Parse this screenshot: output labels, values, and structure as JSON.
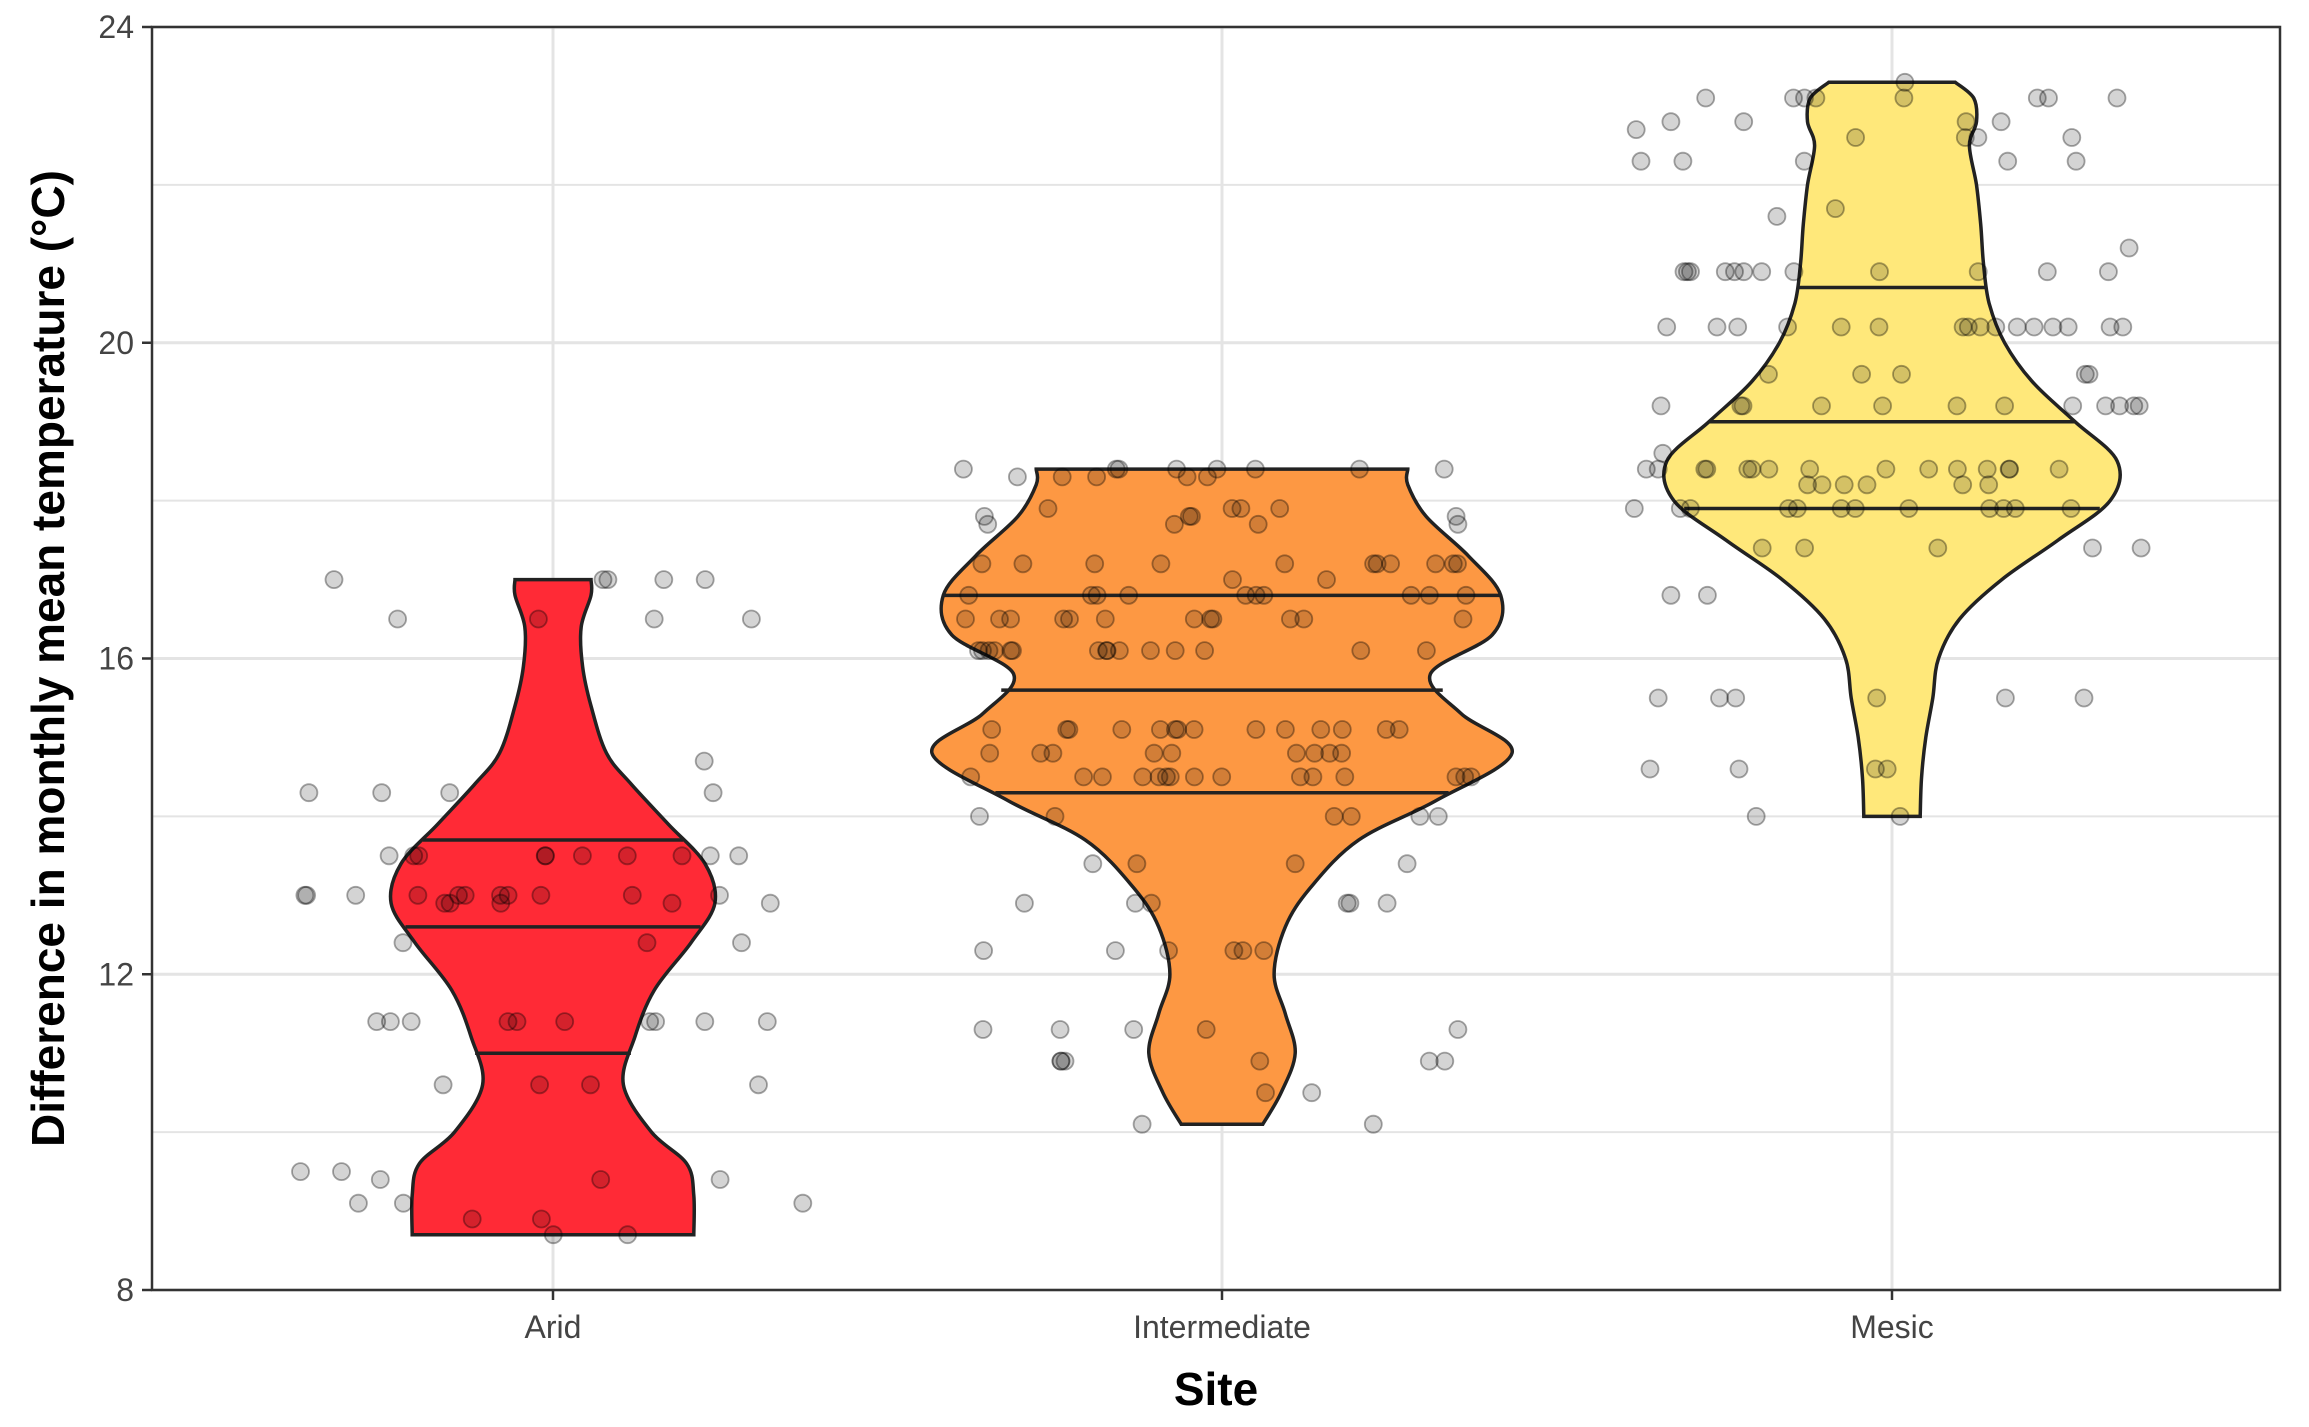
{
  "chart_data": {
    "type": "violin",
    "title": "",
    "xlabel": "Site",
    "ylabel": "Difference in monthly mean temperature (°C)",
    "ylim": [
      8,
      24
    ],
    "yticks": [
      8,
      12,
      16,
      20,
      24
    ],
    "grid": true,
    "legend": "none",
    "categories": [
      "Arid",
      "Intermediate",
      "Mesic"
    ],
    "colors": {
      "Arid": "#ff2a36",
      "Intermediate": "#fd9843",
      "Mesic": "#ffe87a",
      "outline": "#222222",
      "points": "#000000"
    },
    "series": [
      {
        "category": "Arid",
        "min": 8.7,
        "max": 17.0,
        "quartiles": [
          11.0,
          12.6,
          13.7
        ],
        "density": [
          [
            8.7,
            1.0
          ],
          [
            9.2,
            1.0
          ],
          [
            9.6,
            0.95
          ],
          [
            10.0,
            0.7
          ],
          [
            10.6,
            0.5
          ],
          [
            11.2,
            0.58
          ],
          [
            11.8,
            0.72
          ],
          [
            12.4,
            0.98
          ],
          [
            12.9,
            1.15
          ],
          [
            13.4,
            1.08
          ],
          [
            13.9,
            0.82
          ],
          [
            14.4,
            0.56
          ],
          [
            14.8,
            0.38
          ],
          [
            15.4,
            0.27
          ],
          [
            15.9,
            0.21
          ],
          [
            16.4,
            0.2
          ],
          [
            16.8,
            0.27
          ],
          [
            17.0,
            0.27
          ]
        ],
        "points": [
          17.0,
          17.0,
          17.0,
          17.0,
          17.0,
          16.5,
          16.5,
          16.5,
          16.5,
          14.7,
          14.3,
          14.3,
          14.3,
          14.3,
          13.5,
          13.5,
          13.5,
          13.5,
          13.5,
          13.5,
          13.5,
          13.5,
          13.5,
          13.5,
          13.0,
          13.0,
          13.0,
          13.0,
          13.0,
          13.0,
          13.0,
          13.0,
          13.0,
          13.0,
          13.0,
          12.9,
          12.9,
          12.9,
          12.9,
          12.9,
          12.4,
          12.4,
          12.4,
          11.4,
          11.4,
          11.4,
          11.4,
          11.4,
          11.4,
          11.4,
          11.4,
          11.4,
          11.4,
          10.6,
          10.6,
          10.6,
          10.6,
          9.5,
          9.5,
          9.4,
          9.4,
          9.4,
          9.1,
          9.1,
          9.1,
          8.9,
          8.9,
          8.7,
          8.7
        ]
      },
      {
        "category": "Intermediate",
        "min": 10.1,
        "max": 18.4,
        "quartiles": [
          14.3,
          15.6,
          16.8
        ],
        "density": [
          [
            10.1,
            0.29
          ],
          [
            10.5,
            0.42
          ],
          [
            11.0,
            0.52
          ],
          [
            11.5,
            0.45
          ],
          [
            12.0,
            0.37
          ],
          [
            12.6,
            0.45
          ],
          [
            13.1,
            0.63
          ],
          [
            13.7,
            0.97
          ],
          [
            14.2,
            1.52
          ],
          [
            14.8,
            2.06
          ],
          [
            15.3,
            1.7
          ],
          [
            15.8,
            1.48
          ],
          [
            16.3,
            1.92
          ],
          [
            16.8,
            1.98
          ],
          [
            17.3,
            1.75
          ],
          [
            17.8,
            1.45
          ],
          [
            18.2,
            1.32
          ],
          [
            18.4,
            1.32
          ]
        ],
        "points": [
          18.4,
          18.4,
          18.4,
          18.4,
          18.4,
          18.4,
          18.4,
          18.4,
          18.3,
          18.3,
          18.3,
          18.3,
          18.3,
          17.9,
          17.9,
          17.9,
          17.9,
          17.8,
          17.8,
          17.8,
          17.8,
          17.7,
          17.7,
          17.7,
          17.7,
          17.2,
          17.2,
          17.2,
          17.2,
          17.2,
          17.2,
          17.2,
          17.2,
          17.2,
          17.2,
          17.2,
          17.0,
          17.0,
          16.8,
          16.8,
          16.8,
          16.8,
          16.8,
          16.8,
          16.8,
          16.8,
          16.8,
          16.8,
          16.5,
          16.5,
          16.5,
          16.5,
          16.5,
          16.5,
          16.5,
          16.5,
          16.5,
          16.5,
          16.5,
          16.5,
          16.1,
          16.1,
          16.1,
          16.1,
          16.1,
          16.1,
          16.1,
          16.1,
          16.1,
          16.1,
          16.1,
          16.1,
          16.1,
          16.1,
          16.1,
          15.1,
          15.1,
          15.1,
          15.1,
          15.1,
          15.1,
          15.1,
          15.1,
          15.1,
          15.1,
          15.1,
          15.1,
          15.1,
          15.1,
          14.8,
          14.8,
          14.8,
          14.8,
          14.8,
          14.8,
          14.8,
          14.8,
          14.8,
          14.5,
          14.5,
          14.5,
          14.5,
          14.5,
          14.5,
          14.5,
          14.5,
          14.5,
          14.5,
          14.5,
          14.5,
          14.5,
          14.5,
          14.5,
          14.0,
          14.0,
          14.0,
          14.0,
          14.0,
          14.0,
          13.4,
          13.4,
          13.4,
          13.4,
          12.9,
          12.9,
          12.9,
          12.9,
          12.9,
          12.9,
          12.3,
          12.3,
          12.3,
          12.3,
          12.3,
          12.3,
          11.3,
          11.3,
          11.3,
          11.3,
          11.3,
          10.9,
          10.9,
          10.9,
          10.9,
          10.9,
          10.9,
          10.5,
          10.5,
          10.1,
          10.1
        ]
      },
      {
        "category": "Mesic",
        "min": 14.0,
        "max": 23.3,
        "quartiles": [
          17.9,
          19.0,
          20.7
        ],
        "density": [
          [
            14.0,
            0.2
          ],
          [
            14.5,
            0.21
          ],
          [
            15.0,
            0.24
          ],
          [
            15.5,
            0.29
          ],
          [
            16.0,
            0.33
          ],
          [
            16.5,
            0.48
          ],
          [
            17.0,
            0.78
          ],
          [
            17.5,
            1.18
          ],
          [
            18.0,
            1.55
          ],
          [
            18.5,
            1.6
          ],
          [
            19.0,
            1.3
          ],
          [
            19.5,
            1.0
          ],
          [
            20.0,
            0.8
          ],
          [
            20.5,
            0.69
          ],
          [
            21.0,
            0.65
          ],
          [
            21.5,
            0.63
          ],
          [
            22.0,
            0.6
          ],
          [
            22.5,
            0.55
          ],
          [
            22.8,
            0.6
          ],
          [
            23.1,
            0.58
          ],
          [
            23.3,
            0.45
          ]
        ],
        "points": [
          23.3,
          23.1,
          23.1,
          23.1,
          23.1,
          23.1,
          23.1,
          23.1,
          23.1,
          22.8,
          22.8,
          22.8,
          22.8,
          22.7,
          22.6,
          22.6,
          22.6,
          22.6,
          22.3,
          22.3,
          22.3,
          22.3,
          22.3,
          21.7,
          21.6,
          21.2,
          20.9,
          20.9,
          20.9,
          20.9,
          20.9,
          20.9,
          20.9,
          20.9,
          20.9,
          20.9,
          20.9,
          20.9,
          20.2,
          20.2,
          20.2,
          20.2,
          20.2,
          20.2,
          20.2,
          20.2,
          20.2,
          20.2,
          20.2,
          20.2,
          20.2,
          20.2,
          20.2,
          20.2,
          19.6,
          19.6,
          19.6,
          19.6,
          19.6,
          19.2,
          19.2,
          19.2,
          19.2,
          19.2,
          19.2,
          19.2,
          19.2,
          19.2,
          19.2,
          19.2,
          19.2,
          18.6,
          18.4,
          18.4,
          18.4,
          18.4,
          18.4,
          18.4,
          18.4,
          18.4,
          18.4,
          18.4,
          18.4,
          18.4,
          18.4,
          18.4,
          18.4,
          18.2,
          18.2,
          18.2,
          18.2,
          18.2,
          18.2,
          17.9,
          17.9,
          17.9,
          17.9,
          17.9,
          17.9,
          17.9,
          17.9,
          17.9,
          17.9,
          17.9,
          17.9,
          17.4,
          17.4,
          17.4,
          17.4,
          17.4,
          16.8,
          16.8,
          15.5,
          15.5,
          15.5,
          15.5,
          15.5,
          15.5,
          14.6,
          14.6,
          14.6,
          14.6,
          14.0,
          14.0
        ]
      }
    ]
  }
}
